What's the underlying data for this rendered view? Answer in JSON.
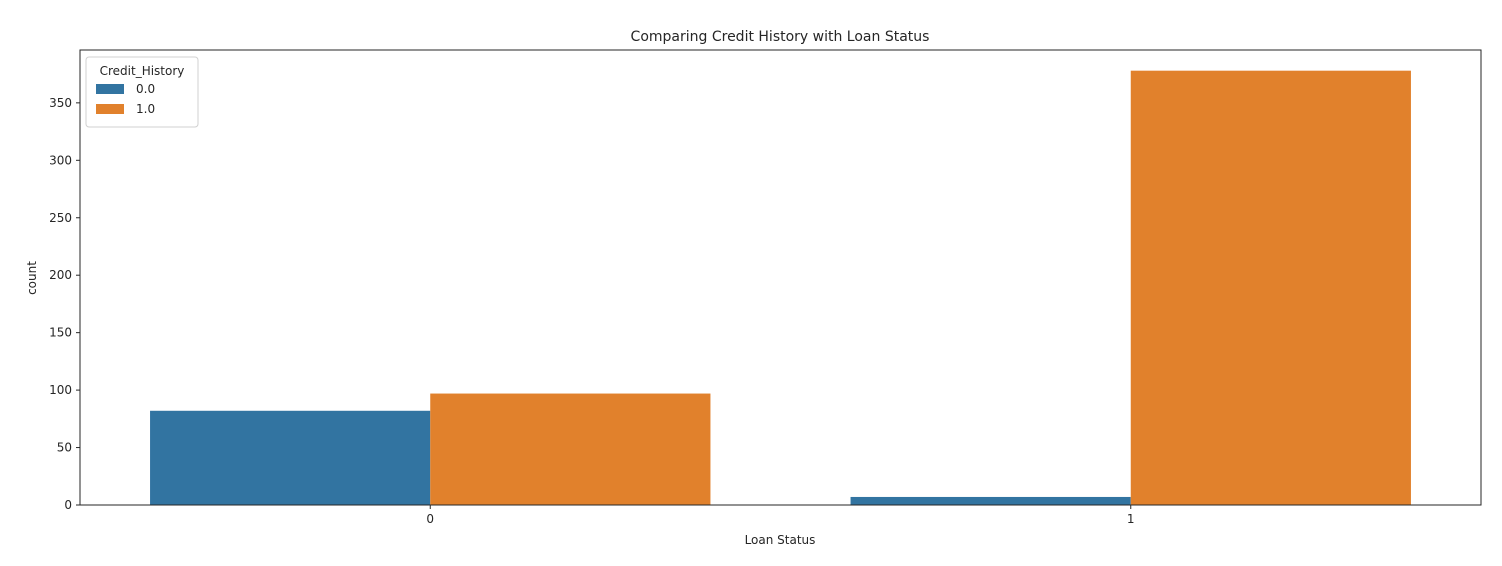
{
  "chart_data": {
    "type": "bar",
    "title": "Comparing Credit History with Loan Status",
    "xlabel": "Loan Status",
    "ylabel": "count",
    "categories": [
      "0",
      "1"
    ],
    "series": [
      {
        "name": "0.0",
        "values": [
          82,
          7
        ],
        "color": "#3274a1"
      },
      {
        "name": "1.0",
        "values": [
          97,
          378
        ],
        "color": "#e1812c"
      }
    ],
    "ylim": [
      0,
      396
    ],
    "yticks": [
      0,
      50,
      100,
      150,
      200,
      250,
      300,
      350
    ],
    "legend": {
      "title": "Credit_History",
      "placement": "top-left"
    },
    "grid": false
  }
}
